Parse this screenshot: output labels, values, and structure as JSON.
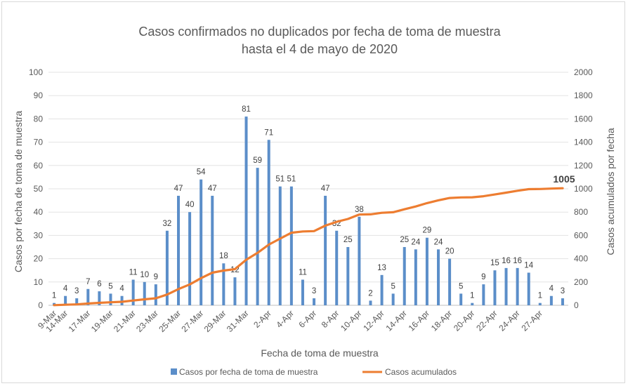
{
  "chart_data": {
    "type": "bar+line",
    "title": "Casos confirmados no duplicados por fecha de toma de muestra",
    "subtitle": "hasta el 4 de mayo de 2020",
    "xlabel": "Fecha de toma de muestra",
    "ylabel_left": "Casos por fecha de toma de muestra",
    "ylabel_right": "Casos acumulados por fecha",
    "ylim_left": [
      0,
      100
    ],
    "ylim_right": [
      0,
      2000
    ],
    "yticks_left": [
      "0",
      "10",
      "20",
      "30",
      "40",
      "50",
      "60",
      "70",
      "80",
      "90",
      "100"
    ],
    "yticks_right": [
      "0",
      "200",
      "400",
      "600",
      "800",
      "1000",
      "1200",
      "1400",
      "1600",
      "1800",
      "2000"
    ],
    "x_tick_labels": [
      "9-Mar",
      "14-Mar",
      "17-Mar",
      "19-Mar",
      "21-Mar",
      "23-Mar",
      "25-Mar",
      "27-Mar",
      "29-Mar",
      "31-Mar",
      "2-Apr",
      "4-Apr",
      "6-Apr",
      "8-Apr",
      "10-Apr",
      "12-Apr",
      "14-Apr",
      "16-Apr",
      "18-Apr",
      "20-Apr",
      "22-Apr",
      "24-Apr",
      "27-Apr"
    ],
    "grid": true,
    "legend_position": "bottom",
    "series": [
      {
        "name": "Casos por fecha de toma de muestra",
        "type": "bar",
        "axis": "left",
        "color": "#5b8ec9",
        "values": [
          1,
          4,
          3,
          7,
          6,
          5,
          4,
          11,
          10,
          9,
          32,
          47,
          40,
          54,
          47,
          18,
          12,
          81,
          59,
          71,
          51,
          51,
          11,
          3,
          47,
          32,
          25,
          38,
          2,
          13,
          5,
          25,
          24,
          29,
          24,
          20,
          5,
          1,
          9,
          15,
          16,
          16,
          14,
          1,
          4,
          3
        ]
      },
      {
        "name": "Casos acumulados",
        "type": "line",
        "axis": "right",
        "color": "#ed7d31",
        "values": [
          1,
          5,
          8,
          15,
          21,
          26,
          30,
          41,
          51,
          60,
          92,
          139,
          179,
          233,
          280,
          298,
          310,
          391,
          450,
          521,
          572,
          623,
          634,
          637,
          684,
          716,
          741,
          779,
          781,
          794,
          799,
          824,
          848,
          877,
          901,
          921,
          926,
          927,
          936,
          951,
          967,
          983,
          997,
          998,
          1002,
          1005
        ],
        "final_label": "1005"
      }
    ]
  }
}
